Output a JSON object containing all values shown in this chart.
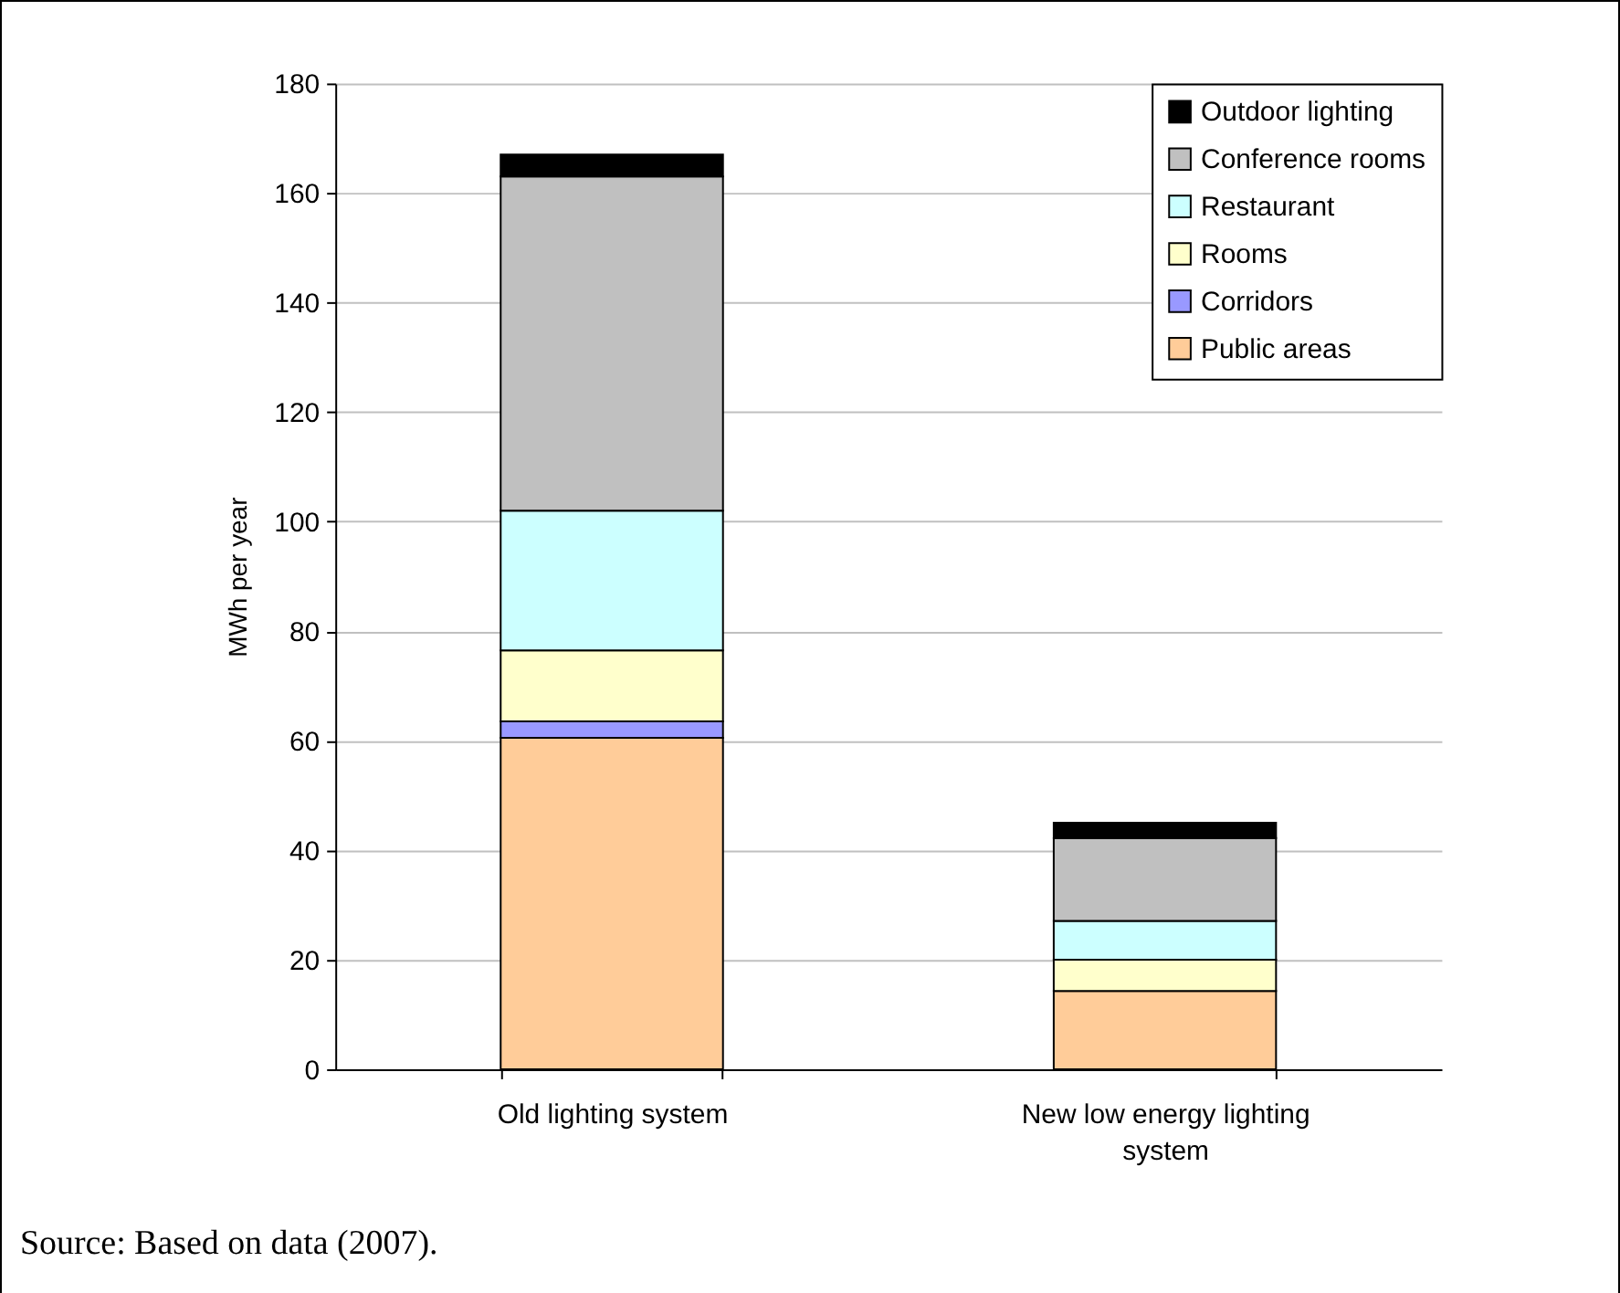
{
  "chart_data": {
    "type": "bar",
    "stacked": true,
    "ylabel": "MWh per year",
    "categories": [
      "Old lighting system",
      "New low energy lighting system"
    ],
    "series": [
      {
        "name": "Public areas",
        "color": "#ffcc99",
        "values": [
          60.5,
          14.3
        ]
      },
      {
        "name": "Corridors",
        "color": "#9999ff",
        "values": [
          3,
          null
        ]
      },
      {
        "name": "Rooms",
        "color": "#ffffcc",
        "values": [
          13,
          5.7
        ]
      },
      {
        "name": "Restaurant",
        "color": "#ccffff",
        "values": [
          25.5,
          7.1
        ]
      },
      {
        "name": "Conference rooms",
        "color": "#c0c0c0",
        "values": [
          61,
          15.1
        ]
      },
      {
        "name": "Outdoor lighting",
        "color": "#000000",
        "values": [
          4,
          2.8
        ]
      }
    ],
    "ylim": [
      0,
      180
    ],
    "yticks": [
      0,
      20,
      40,
      60,
      80,
      100,
      120,
      140,
      160,
      180
    ],
    "grid": "y",
    "legend": "top right",
    "annotations": [
      "Source: Based on data (2007)."
    ]
  }
}
